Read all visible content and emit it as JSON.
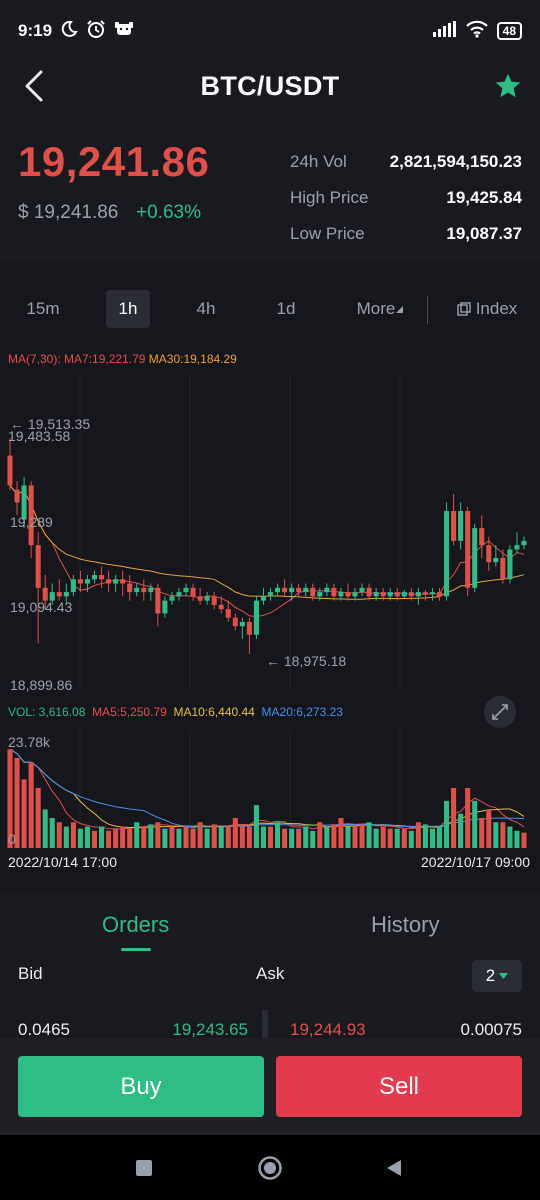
{
  "status_bar": {
    "time": "9:19",
    "battery": "48",
    "left_icons": [
      "moon-icon",
      "alarm-icon",
      "dog-icon"
    ],
    "right_icons": [
      "signal-icon",
      "wifi-icon",
      "battery-icon"
    ]
  },
  "header": {
    "title": "BTC/USDT",
    "favorite": true,
    "accent": "#2ebd85"
  },
  "price": {
    "last": "19,241.86",
    "usd": "$ 19,241.86",
    "change": "+0.63%",
    "up_color": "#2ebd85",
    "down_color": "#e04f4a"
  },
  "stats": [
    {
      "label": "24h Vol",
      "value": "2,821,594,150.23"
    },
    {
      "label": "High Price",
      "value": "19,425.84"
    },
    {
      "label": "Low Price",
      "value": "19,087.37"
    }
  ],
  "intervals": {
    "items": [
      "15m",
      "1h",
      "4h",
      "1d"
    ],
    "active": "1h",
    "more": "More",
    "index": "Index"
  },
  "chart_legend": {
    "ma_label": "MA(7,30):",
    "ma7": "MA7:19,221.79",
    "ma30": "MA30:19,184.29",
    "vol": "VOL: 3,616.08",
    "vol_ma5": "MA5:5,250.79",
    "vol_ma10": "MA10:6,440.44",
    "vol_ma20": "MA20:6,273.23"
  },
  "chart_data": {
    "type": "candlestick",
    "price_axis_labels": [
      "19,483.58",
      "19,289",
      "19,094.43",
      "18,899.86"
    ],
    "price_ylim": [
      18899.86,
      19483.58
    ],
    "marker_high": "← 19,513.35",
    "marker_low": "← 18,975.18",
    "volume_axis_labels": [
      "23.78k",
      "0"
    ],
    "volume_ylim": [
      0,
      23780
    ],
    "time_labels": [
      "2022/10/14 17:00",
      "2022/10/17 09:00"
    ],
    "candles": [
      [
        19440,
        19480,
        19370,
        19360
      ],
      [
        19360,
        19380,
        19330,
        19300
      ],
      [
        19290,
        19390,
        19370,
        19270
      ],
      [
        19370,
        19380,
        19230,
        19200
      ],
      [
        19230,
        19260,
        19130,
        19000
      ],
      [
        19130,
        19160,
        19100,
        19080
      ],
      [
        19100,
        19140,
        19120,
        19090
      ],
      [
        19120,
        19150,
        19110,
        19100
      ],
      [
        19110,
        19140,
        19120,
        19095
      ],
      [
        19120,
        19160,
        19150,
        19110
      ],
      [
        19150,
        19170,
        19140,
        19120
      ],
      [
        19140,
        19160,
        19150,
        19120
      ],
      [
        19150,
        19170,
        19160,
        19140
      ],
      [
        19160,
        19180,
        19150,
        19130
      ],
      [
        19150,
        19170,
        19140,
        19120
      ],
      [
        19140,
        19160,
        19150,
        19120
      ],
      [
        19150,
        19170,
        19140,
        19110
      ],
      [
        19140,
        19160,
        19120,
        19100
      ],
      [
        19120,
        19140,
        19130,
        19110
      ],
      [
        19130,
        19150,
        19120,
        19100
      ],
      [
        19120,
        19140,
        19130,
        19100
      ],
      [
        19130,
        19140,
        19070,
        19040
      ],
      [
        19070,
        19110,
        19100,
        19060
      ],
      [
        19100,
        19120,
        19110,
        19090
      ],
      [
        19110,
        19130,
        19120,
        19100
      ],
      [
        19120,
        19140,
        19130,
        19110
      ],
      [
        19130,
        19140,
        19110,
        19100
      ],
      [
        19110,
        19130,
        19100,
        19090
      ],
      [
        19100,
        19120,
        19110,
        19090
      ],
      [
        19110,
        19120,
        19090,
        19080
      ],
      [
        19090,
        19110,
        19080,
        19070
      ],
      [
        19080,
        19100,
        19060,
        19050
      ],
      [
        19060,
        19070,
        19040,
        19030
      ],
      [
        19040,
        19060,
        19050,
        19010
      ],
      [
        19050,
        19060,
        19020,
        18975
      ],
      [
        19020,
        19110,
        19100,
        19010
      ],
      [
        19100,
        19130,
        19110,
        19090
      ],
      [
        19110,
        19130,
        19120,
        19100
      ],
      [
        19120,
        19140,
        19130,
        19110
      ],
      [
        19130,
        19150,
        19120,
        19110
      ],
      [
        19120,
        19140,
        19130,
        19100
      ],
      [
        19130,
        19140,
        19120,
        19110
      ],
      [
        19120,
        19140,
        19130,
        19110
      ],
      [
        19130,
        19140,
        19110,
        19100
      ],
      [
        19110,
        19130,
        19120,
        19100
      ],
      [
        19120,
        19140,
        19130,
        19110
      ],
      [
        19130,
        19140,
        19110,
        19100
      ],
      [
        19110,
        19130,
        19120,
        19100
      ],
      [
        19120,
        19140,
        19110,
        19100
      ],
      [
        19110,
        19130,
        19120,
        19100
      ],
      [
        19120,
        19140,
        19130,
        19110
      ],
      [
        19130,
        19140,
        19110,
        19100
      ],
      [
        19110,
        19130,
        19120,
        19100
      ],
      [
        19120,
        19130,
        19110,
        19100
      ],
      [
        19110,
        19130,
        19120,
        19100
      ],
      [
        19120,
        19130,
        19110,
        19100
      ],
      [
        19110,
        19125,
        19120,
        19105
      ],
      [
        19120,
        19130,
        19110,
        19100
      ],
      [
        19110,
        19130,
        19120,
        19090
      ],
      [
        19120,
        19125,
        19115,
        19100
      ],
      [
        19115,
        19130,
        19120,
        19100
      ],
      [
        19120,
        19130,
        19110,
        19100
      ],
      [
        19110,
        19330,
        19310,
        19100
      ],
      [
        19310,
        19350,
        19240,
        19230
      ],
      [
        19240,
        19330,
        19310,
        19220
      ],
      [
        19310,
        19320,
        19130,
        19110
      ],
      [
        19130,
        19280,
        19270,
        19120
      ],
      [
        19270,
        19300,
        19230,
        19200
      ],
      [
        19230,
        19250,
        19190,
        19170
      ],
      [
        19190,
        19230,
        19200,
        19180
      ],
      [
        19200,
        19220,
        19150,
        19140
      ],
      [
        19150,
        19230,
        19220,
        19140
      ],
      [
        19220,
        19260,
        19230,
        19210
      ],
      [
        19230,
        19250,
        19240,
        19220
      ]
    ],
    "volumes": [
      [
        23000,
        0
      ],
      [
        21000,
        0
      ],
      [
        16000,
        0
      ],
      [
        20000,
        0
      ],
      [
        14000,
        0
      ],
      [
        9000,
        1
      ],
      [
        7000,
        1
      ],
      [
        6000,
        0
      ],
      [
        5000,
        1
      ],
      [
        6000,
        0
      ],
      [
        4500,
        1
      ],
      [
        5000,
        1
      ],
      [
        4000,
        0
      ],
      [
        5000,
        1
      ],
      [
        4000,
        0
      ],
      [
        4500,
        0
      ],
      [
        5000,
        0
      ],
      [
        4500,
        0
      ],
      [
        6000,
        1
      ],
      [
        5000,
        0
      ],
      [
        5500,
        1
      ],
      [
        6000,
        0
      ],
      [
        4500,
        1
      ],
      [
        5000,
        0
      ],
      [
        4500,
        1
      ],
      [
        5000,
        0
      ],
      [
        4500,
        0
      ],
      [
        6000,
        0
      ],
      [
        4500,
        1
      ],
      [
        5500,
        0
      ],
      [
        5000,
        1
      ],
      [
        5000,
        0
      ],
      [
        7000,
        0
      ],
      [
        5000,
        0
      ],
      [
        5000,
        0
      ],
      [
        10000,
        1
      ],
      [
        5000,
        1
      ],
      [
        5000,
        0
      ],
      [
        6000,
        1
      ],
      [
        4500,
        0
      ],
      [
        4500,
        1
      ],
      [
        4500,
        0
      ],
      [
        5000,
        1
      ],
      [
        4000,
        1
      ],
      [
        6000,
        0
      ],
      [
        5000,
        1
      ],
      [
        5500,
        0
      ],
      [
        7000,
        0
      ],
      [
        5000,
        1
      ],
      [
        5000,
        0
      ],
      [
        5500,
        0
      ],
      [
        6000,
        1
      ],
      [
        4500,
        1
      ],
      [
        5000,
        0
      ],
      [
        4500,
        0
      ],
      [
        4500,
        1
      ],
      [
        4500,
        0
      ],
      [
        4000,
        1
      ],
      [
        6000,
        0
      ],
      [
        5500,
        1
      ],
      [
        4500,
        1
      ],
      [
        5000,
        1
      ],
      [
        11000,
        1
      ],
      [
        14000,
        0
      ],
      [
        8000,
        1
      ],
      [
        14000,
        0
      ],
      [
        11000,
        1
      ],
      [
        7000,
        0
      ],
      [
        9000,
        0
      ],
      [
        6000,
        1
      ],
      [
        6000,
        0
      ],
      [
        5000,
        1
      ],
      [
        4000,
        1
      ],
      [
        3600,
        0
      ]
    ]
  },
  "orders": {
    "tab_orders": "Orders",
    "tab_history": "History",
    "bid": "Bid",
    "ask": "Ask",
    "depth": "2",
    "row": {
      "bid_qty": "0.0465",
      "bid_price": "19,243.65",
      "ask_price": "19,244.93",
      "ask_qty": "0.00075"
    }
  },
  "actions": {
    "buy": "Buy",
    "sell": "Sell"
  }
}
